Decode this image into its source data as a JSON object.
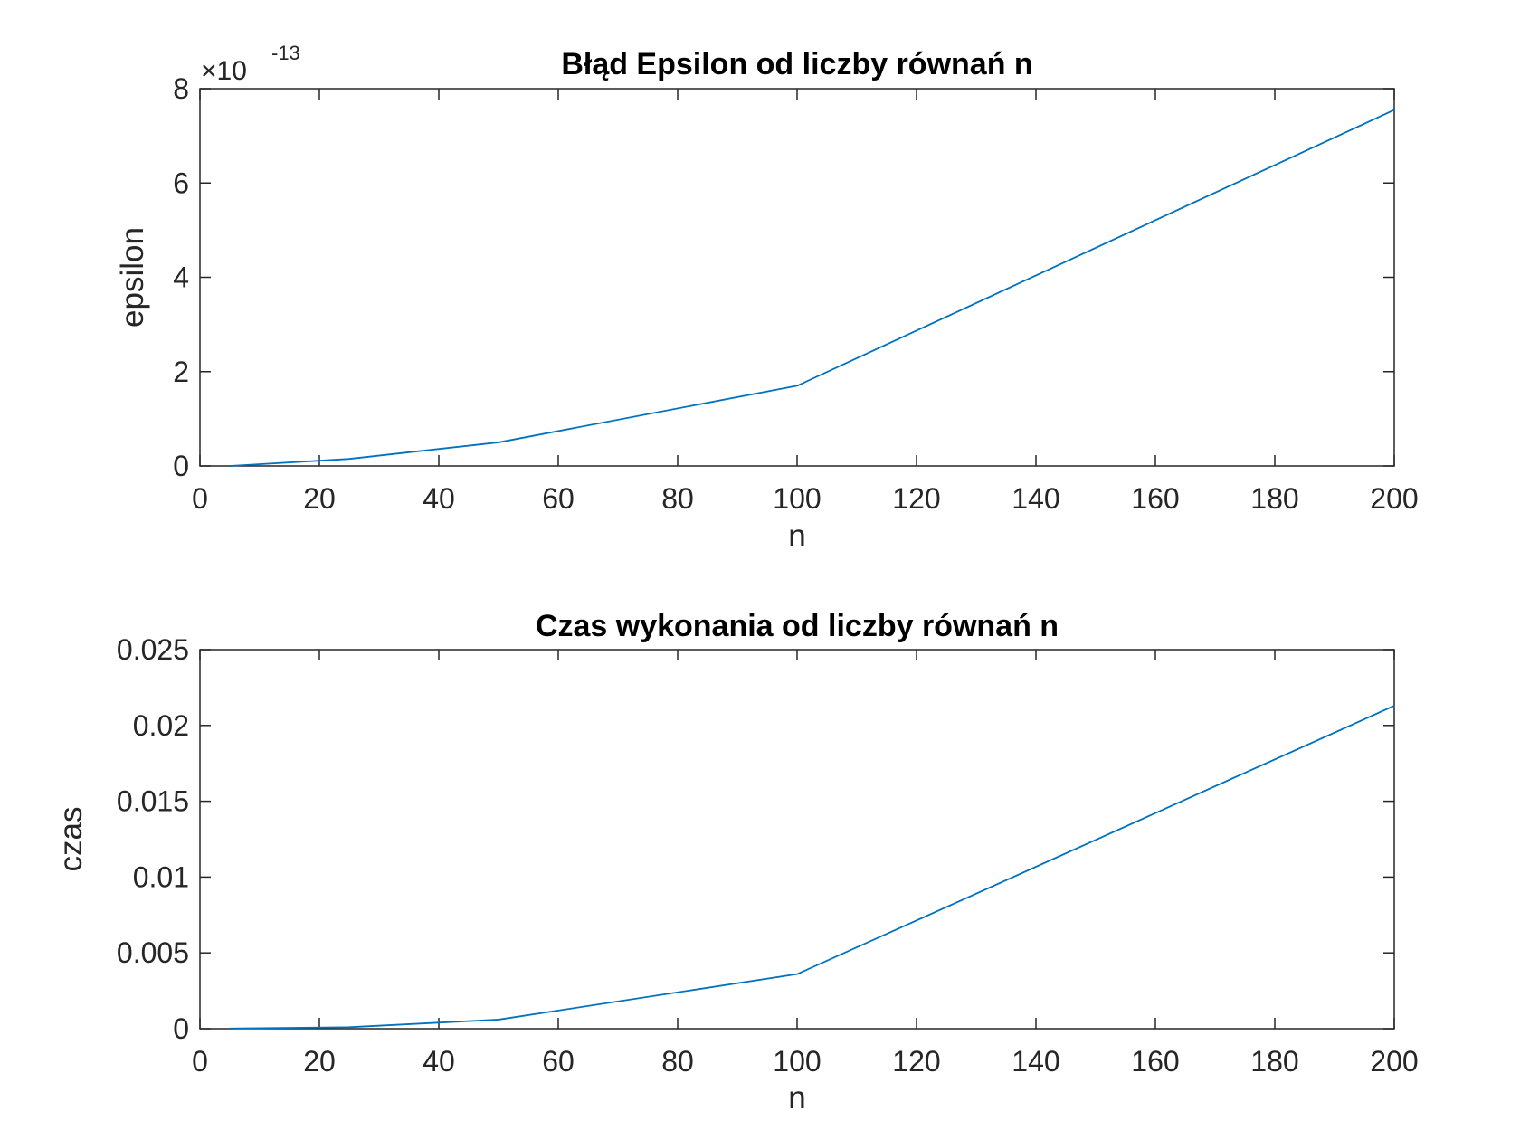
{
  "chart_data": [
    {
      "type": "line",
      "title": "Błąd Epsilon od liczby równań n",
      "xlabel": "n",
      "ylabel": "epsilon",
      "xlim": [
        0,
        200
      ],
      "ylim": [
        0,
        8
      ],
      "xticks": [
        0,
        20,
        40,
        60,
        80,
        100,
        120,
        140,
        160,
        180,
        200
      ],
      "xtick_labels": [
        "0",
        "20",
        "40",
        "60",
        "80",
        "100",
        "120",
        "140",
        "160",
        "180",
        "200"
      ],
      "yticks": [
        0,
        2,
        4,
        6,
        8
      ],
      "ytick_labels": [
        "0",
        "2",
        "4",
        "6",
        "8"
      ],
      "y_exponent": {
        "base": "×10",
        "power": "-13"
      },
      "grid": false,
      "line_color": "#0072BD",
      "x": [
        5,
        25,
        50,
        100,
        200
      ],
      "y": [
        0.0,
        0.15,
        0.5,
        1.7,
        7.55
      ]
    },
    {
      "type": "line",
      "title": "Czas wykonania od liczby równań n",
      "xlabel": "n",
      "ylabel": "czas",
      "xlim": [
        0,
        200
      ],
      "ylim": [
        0,
        0.025
      ],
      "xticks": [
        0,
        20,
        40,
        60,
        80,
        100,
        120,
        140,
        160,
        180,
        200
      ],
      "xtick_labels": [
        "0",
        "20",
        "40",
        "60",
        "80",
        "100",
        "120",
        "140",
        "160",
        "180",
        "200"
      ],
      "yticks": [
        0,
        0.005,
        0.01,
        0.015,
        0.02,
        0.025
      ],
      "ytick_labels": [
        "0",
        "0.005",
        "0.01",
        "0.015",
        "0.02",
        "0.025"
      ],
      "grid": false,
      "line_color": "#0072BD",
      "x": [
        5,
        25,
        50,
        100,
        200
      ],
      "y": [
        1e-05,
        0.0001,
        0.0006,
        0.0036,
        0.0213
      ]
    }
  ]
}
